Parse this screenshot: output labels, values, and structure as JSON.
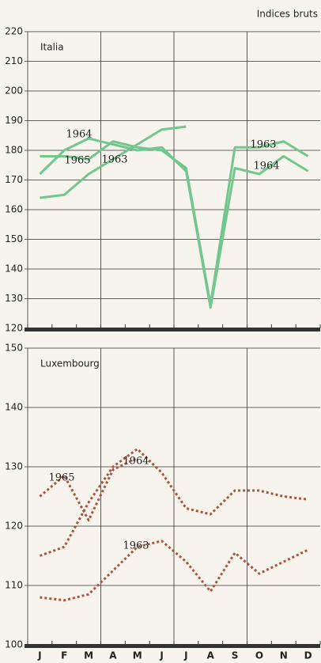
{
  "header": "Indices bruts",
  "chart_data": [
    {
      "type": "line",
      "title": "Italia",
      "ylim": [
        120,
        220
      ],
      "yticks": [
        120,
        130,
        140,
        150,
        160,
        170,
        180,
        190,
        200,
        210,
        220
      ],
      "grid": true,
      "series": [
        {
          "name": "1963",
          "color": "#72c68e",
          "values": [
            178,
            178,
            177,
            183,
            181,
            180,
            174,
            128,
            181,
            181,
            183,
            178
          ]
        },
        {
          "name": "1964",
          "color": "#72c68e",
          "values": [
            172,
            180,
            184,
            182,
            180,
            181,
            173,
            127,
            174,
            172,
            178,
            173
          ]
        },
        {
          "name": "1965",
          "color": "#72c68e",
          "values": [
            164,
            165,
            172,
            177,
            182,
            187,
            188,
            null,
            null,
            null,
            null,
            null
          ]
        }
      ],
      "annotations": [
        "1964",
        "1965",
        "1963",
        "1963",
        "1964"
      ]
    },
    {
      "type": "line",
      "title": "Luxembourg",
      "categories": [
        "J",
        "F",
        "M",
        "A",
        "M",
        "J",
        "J",
        "A",
        "S",
        "O",
        "N",
        "D"
      ],
      "ylim": [
        100,
        150
      ],
      "yticks": [
        100,
        110,
        120,
        130,
        140,
        150
      ],
      "grid": true,
      "series": [
        {
          "name": "1963",
          "color": "#a9553f",
          "values": [
            108,
            107.5,
            108.5,
            112.5,
            116.5,
            117.5,
            114,
            109,
            115.5,
            112,
            114,
            116
          ]
        },
        {
          "name": "1964",
          "color": "#a9553f",
          "values": [
            115,
            116.5,
            124,
            130,
            133,
            129,
            123,
            122,
            126,
            126,
            125,
            124.5
          ]
        },
        {
          "name": "1965",
          "color": "#a9553f",
          "values": [
            125,
            128.5,
            121,
            129.5,
            131.5,
            null,
            null,
            null,
            null,
            null,
            null,
            null
          ]
        }
      ],
      "annotations": [
        "1965",
        "1964",
        "1963"
      ]
    }
  ]
}
